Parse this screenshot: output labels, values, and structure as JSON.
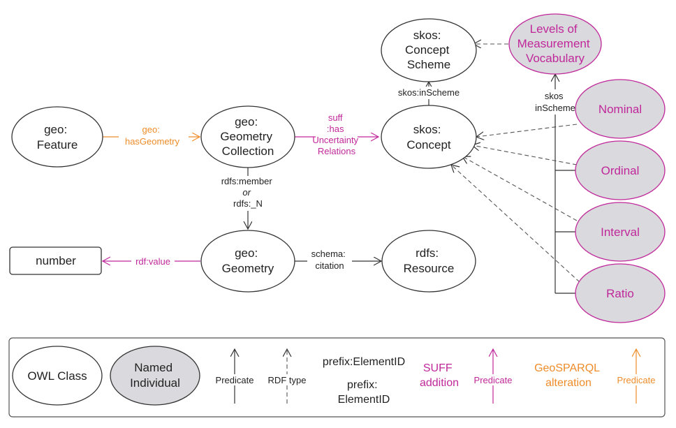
{
  "colors": {
    "black": "#222222",
    "suff": "#c0289a",
    "geosparql": "#ee8c2a",
    "individual_fill": "#d9d9de",
    "box_stroke": "#555555"
  },
  "nodes": {
    "geo_feature": [
      "geo:",
      "Feature"
    ],
    "geometry_collection": [
      "geo:",
      "Geometry",
      "Collection"
    ],
    "geometry": [
      "geo:",
      "Geometry"
    ],
    "rdfs_resource": [
      "rdfs:",
      "Resource"
    ],
    "skos_concept": [
      "skos:",
      "Concept"
    ],
    "skos_concept_scheme": [
      "skos:",
      "Concept",
      "Scheme"
    ],
    "levels_vocab": [
      "Levels of",
      "Measurement",
      "Vocabulary"
    ],
    "nominal": [
      "Nominal"
    ],
    "ordinal": [
      "Ordinal"
    ],
    "interval": [
      "Interval"
    ],
    "ratio": [
      "Ratio"
    ],
    "number": [
      "number"
    ]
  },
  "edges": {
    "has_geometry": [
      "geo:",
      "hasGeometry"
    ],
    "has_uncertainty": [
      "suff",
      ":has",
      "Uncertainty",
      "Relations"
    ],
    "member": [
      "rdfs:member",
      "or",
      "rdfs:_N"
    ],
    "citation": [
      "schema:",
      "citation"
    ],
    "rdf_value": [
      "rdf:value"
    ],
    "in_scheme_concept": [
      "skos:inScheme"
    ],
    "in_scheme_levels": [
      "skos",
      "inScheme"
    ]
  },
  "legend": {
    "owl_class": [
      "OWL Class"
    ],
    "named_individual": [
      "Named",
      "Individual"
    ],
    "predicate": [
      "Predicate"
    ],
    "rdf_type": [
      "RDF type"
    ],
    "prefix_inline": [
      "prefix:ElementID"
    ],
    "prefix_stacked": [
      "prefix:",
      "ElementID"
    ],
    "suff_addition": [
      "SUFF",
      "addition"
    ],
    "suff_predicate": [
      "Predicate"
    ],
    "geosparql_alteration": [
      "GeoSPARQL",
      "alteration"
    ],
    "geosparql_predicate": [
      "Predicate"
    ]
  }
}
